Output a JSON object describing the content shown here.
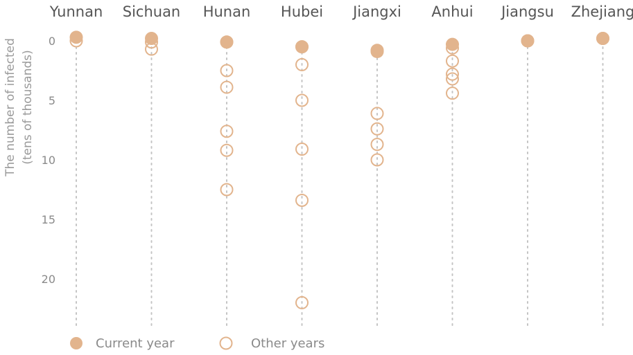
{
  "chart_data": {
    "type": "scatter",
    "categories": [
      "Yunnan",
      "Sichuan",
      "Hunan",
      "Hubei",
      "Jiangxi",
      "Anhui",
      "Jiangsu",
      "Zhejiang"
    ],
    "ylabel_line1": "The number of infected",
    "ylabel_line2": "(tens of thousands)",
    "ylim": [
      0,
      23.5
    ],
    "y_reversed": true,
    "y_ticks": [
      0,
      5,
      10,
      15,
      20
    ],
    "grid": false,
    "legend_position": "bottom-left",
    "colors": {
      "marker": "#e2b48d"
    },
    "series": [
      {
        "name": "Current year",
        "marker": "filled",
        "points": [
          {
            "category": "Yunnan",
            "y": -0.3
          },
          {
            "category": "Sichuan",
            "y": -0.2
          },
          {
            "category": "Hunan",
            "y": 0.1
          },
          {
            "category": "Hubei",
            "y": 0.5
          },
          {
            "category": "Jiangxi",
            "y": 0.9
          },
          {
            "category": "Anhui",
            "y": 0.3
          },
          {
            "category": "Jiangsu",
            "y": 0.0
          },
          {
            "category": "Zhejiang",
            "y": -0.2
          }
        ]
      },
      {
        "name": "Other years",
        "marker": "hollow",
        "points": [
          {
            "category": "Yunnan",
            "y": 0.0
          },
          {
            "category": "Sichuan",
            "y": 0.1
          },
          {
            "category": "Sichuan",
            "y": 0.7
          },
          {
            "category": "Hunan",
            "y": 0.1
          },
          {
            "category": "Hunan",
            "y": 2.5
          },
          {
            "category": "Hunan",
            "y": 3.9
          },
          {
            "category": "Hunan",
            "y": 7.6
          },
          {
            "category": "Hunan",
            "y": 9.2
          },
          {
            "category": "Hunan",
            "y": 12.5
          },
          {
            "category": "Hubei",
            "y": 0.5
          },
          {
            "category": "Hubei",
            "y": 2.0
          },
          {
            "category": "Hubei",
            "y": 5.0
          },
          {
            "category": "Hubei",
            "y": 9.1
          },
          {
            "category": "Hubei",
            "y": 13.4
          },
          {
            "category": "Hubei",
            "y": 22.0
          },
          {
            "category": "Jiangxi",
            "y": 0.8
          },
          {
            "category": "Jiangxi",
            "y": 6.1
          },
          {
            "category": "Jiangxi",
            "y": 7.4
          },
          {
            "category": "Jiangxi",
            "y": 8.7
          },
          {
            "category": "Jiangxi",
            "y": 10.0
          },
          {
            "category": "Anhui",
            "y": 0.6
          },
          {
            "category": "Anhui",
            "y": 1.7
          },
          {
            "category": "Anhui",
            "y": 2.8
          },
          {
            "category": "Anhui",
            "y": 3.2
          },
          {
            "category": "Anhui",
            "y": 4.4
          },
          {
            "category": "Jiangsu",
            "y": 0.0
          },
          {
            "category": "Zhejiang",
            "y": -0.2
          }
        ]
      }
    ]
  }
}
